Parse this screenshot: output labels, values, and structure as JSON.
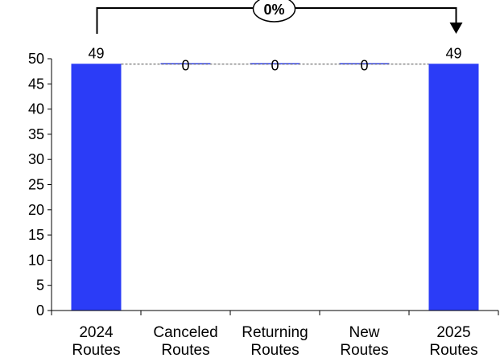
{
  "chart_data": {
    "type": "bar",
    "subtype": "waterfall",
    "categories": [
      [
        "2024",
        "Routes"
      ],
      [
        "Canceled",
        "Routes"
      ],
      [
        "Returning",
        "Routes"
      ],
      [
        "New",
        "Routes"
      ],
      [
        "2025",
        "Routes"
      ]
    ],
    "values": [
      49,
      0,
      0,
      0,
      49
    ],
    "data_labels": [
      "49",
      "0",
      "0",
      "0",
      "49"
    ],
    "ylim": [
      0,
      50
    ],
    "yticks": [
      0,
      5,
      10,
      15,
      20,
      25,
      30,
      35,
      40,
      45,
      50
    ],
    "grid": false,
    "legend": "none",
    "colors": {
      "bar": "#2b3cf7",
      "axis": "#000000",
      "connector": "#555555"
    },
    "change_annotation": {
      "label": "0%",
      "from": 0,
      "to": 4
    }
  }
}
